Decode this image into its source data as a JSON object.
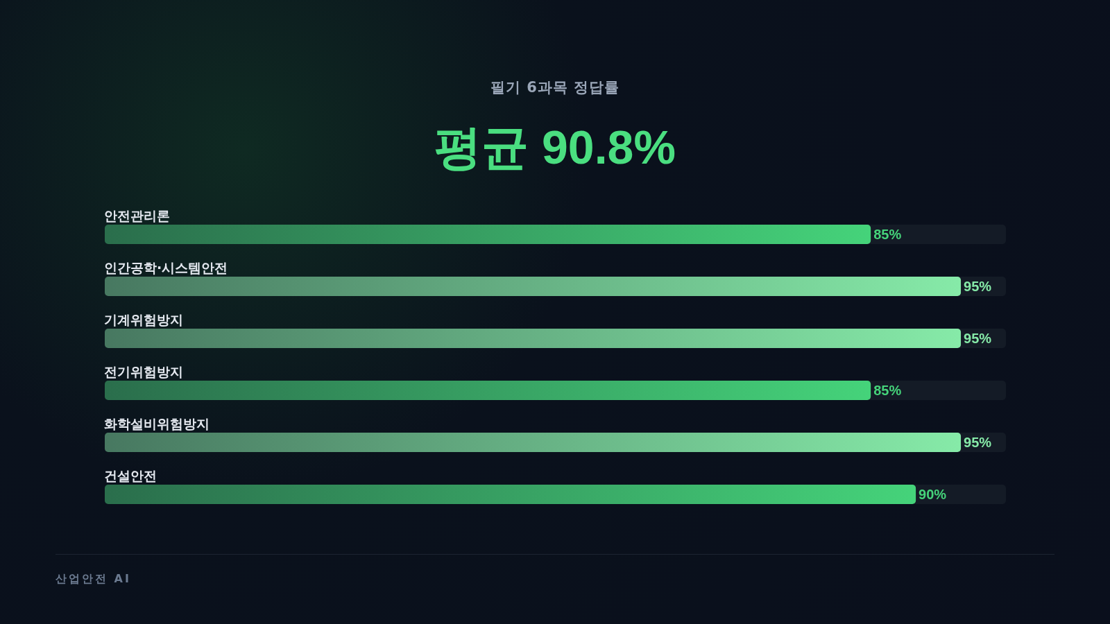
{
  "chart_data": {
    "type": "bar",
    "orientation": "horizontal",
    "subtitle": "필기 6과목 정답률",
    "title": "평균 90.8%",
    "categories": [
      "안전관리론",
      "인간공학·시스템안전",
      "기계위험방지",
      "전기위험방지",
      "화학설비위험방지",
      "건설안전"
    ],
    "values": [
      85,
      95,
      95,
      85,
      95,
      90
    ],
    "colors": [
      "#45d37a",
      "#86eaa8",
      "#86eaa8",
      "#45d37a",
      "#86eaa8",
      "#45d37a"
    ],
    "value_labels": [
      "85%",
      "95%",
      "95%",
      "85%",
      "95%",
      "90%"
    ],
    "xlim": [
      0,
      100
    ],
    "tick_labels": "y",
    "grid": false,
    "annotations": [
      "산업안전 AI"
    ]
  }
}
